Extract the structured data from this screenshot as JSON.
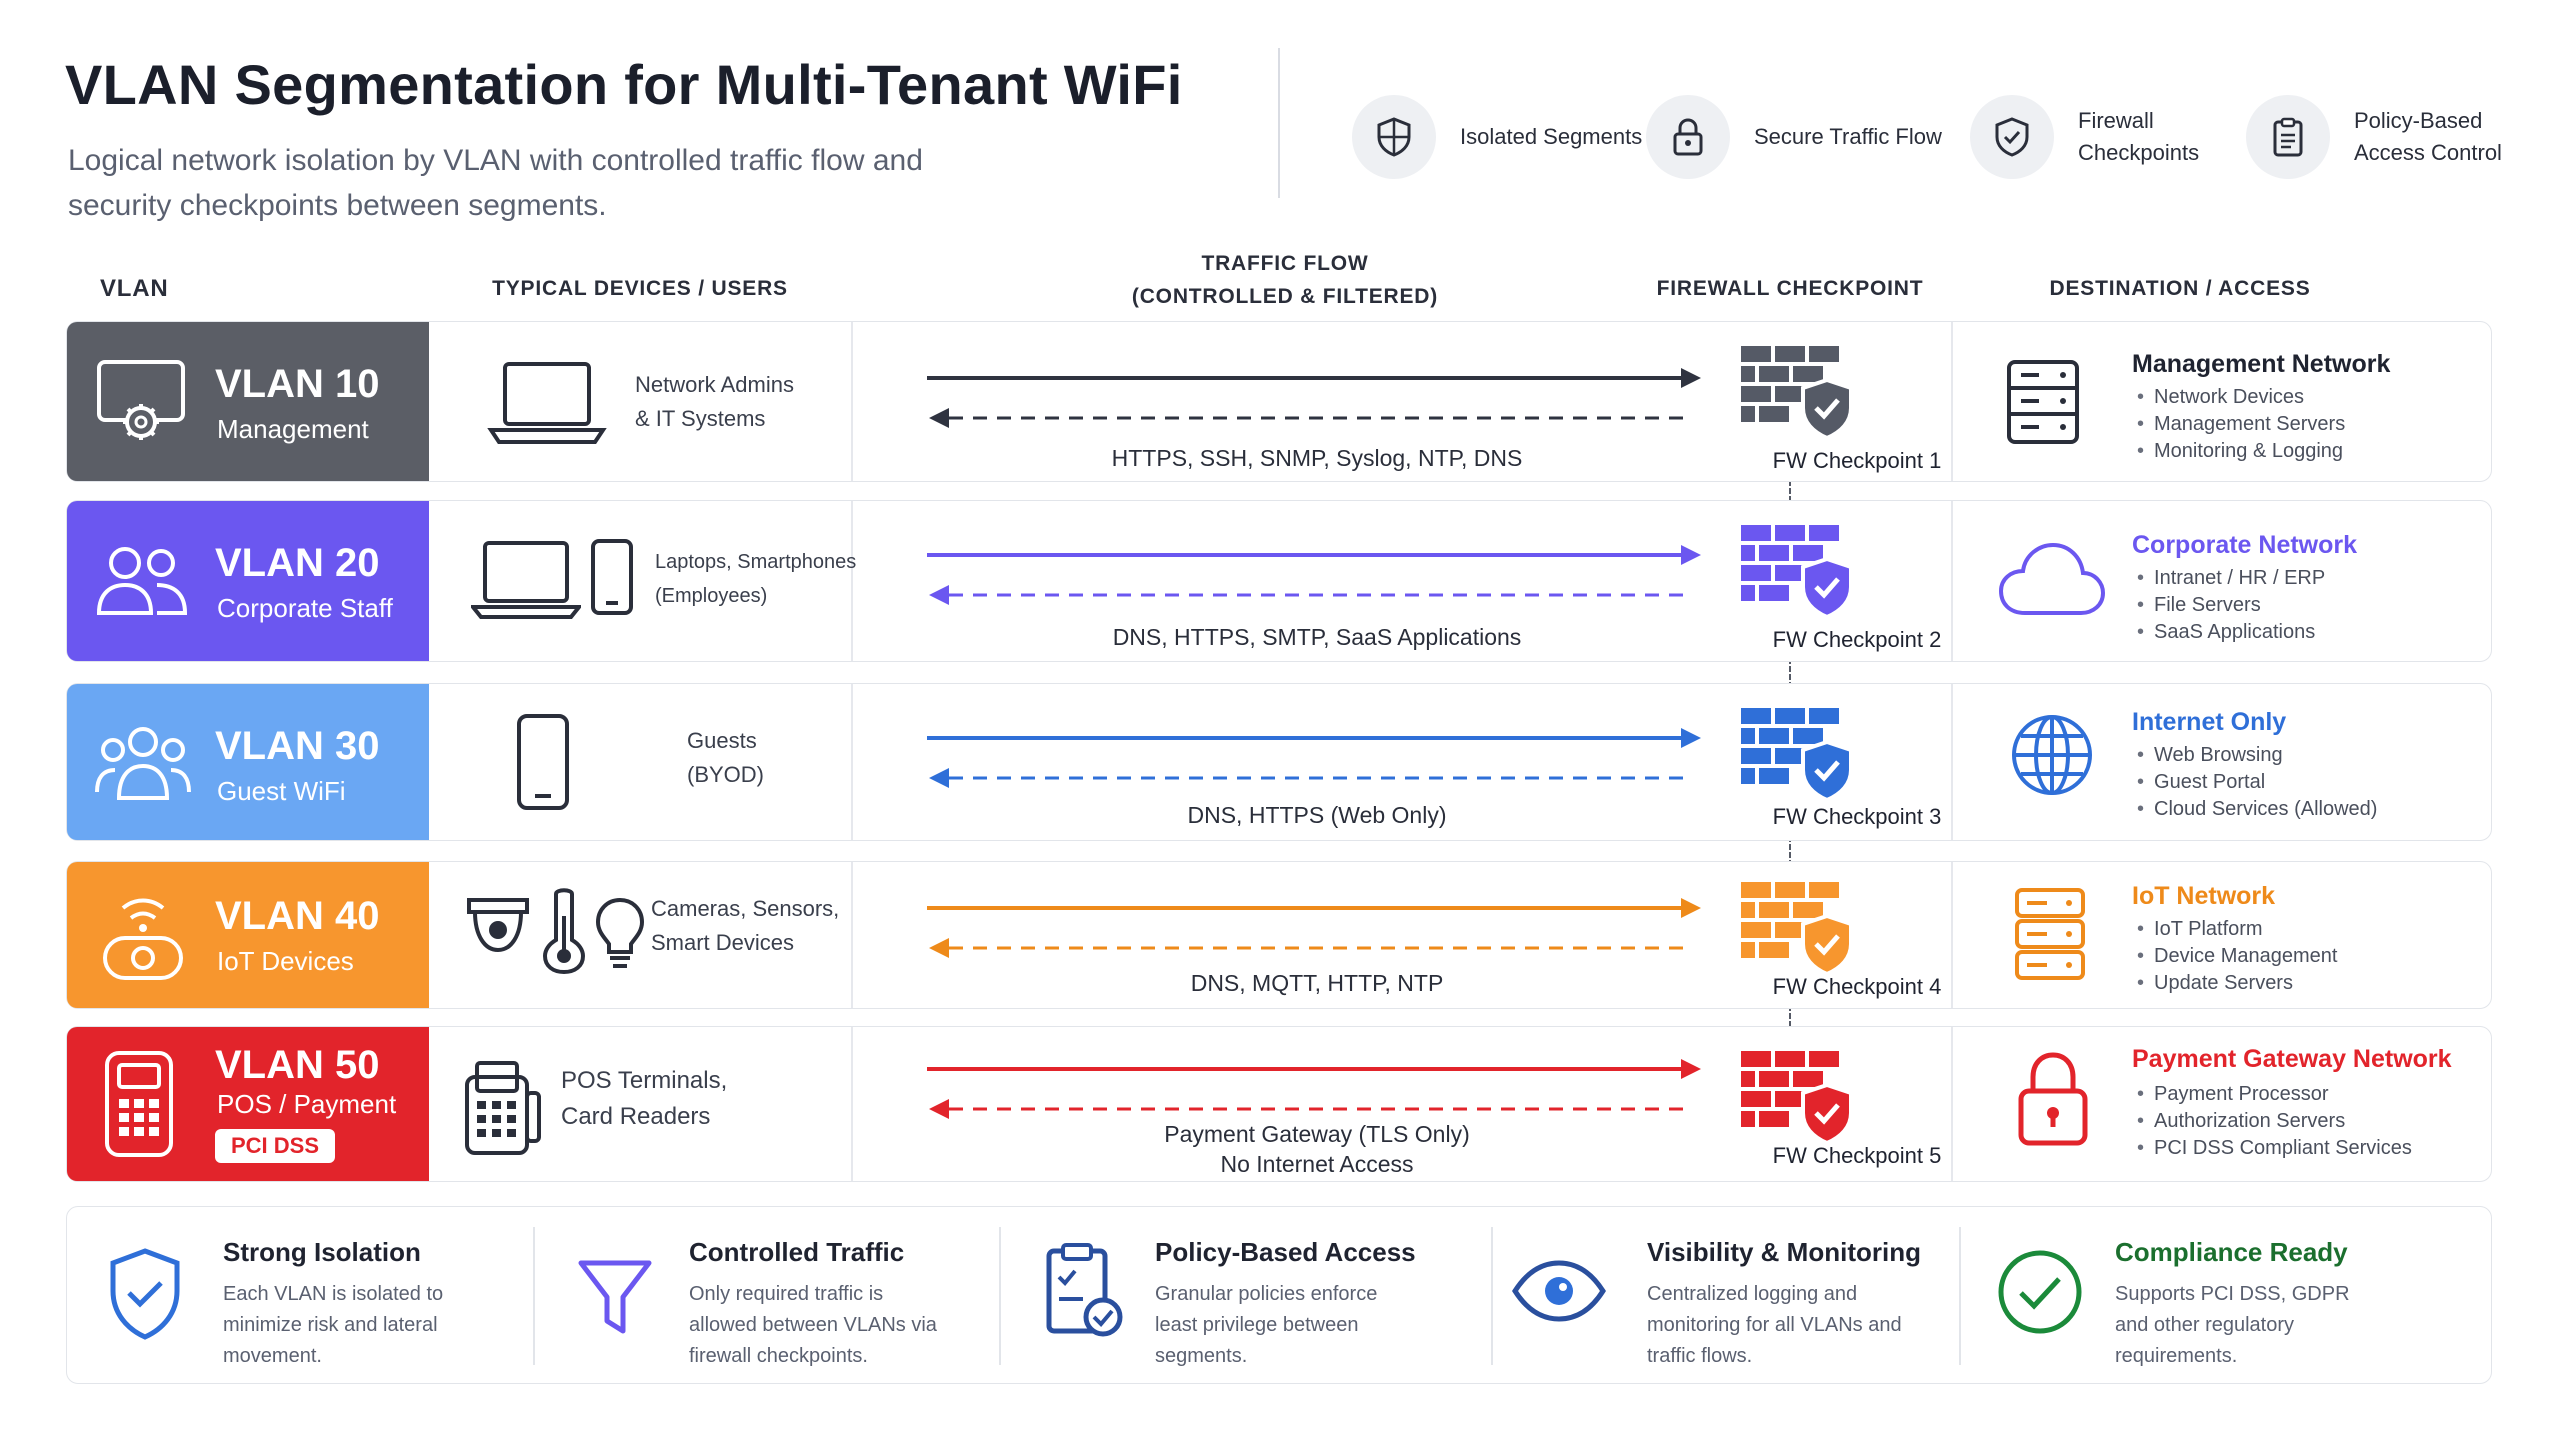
{
  "header": {
    "title": "VLAN Segmentation for Multi-Tenant WiFi",
    "subtitle": "Logical network isolation by VLAN with controlled traffic flow and security checkpoints between segments.",
    "features": [
      {
        "label": "Isolated Segments",
        "icon": "shield-icon"
      },
      {
        "label": "Secure Traffic Flow",
        "icon": "lock-icon"
      },
      {
        "label": "Firewall Checkpoints",
        "icon": "shield-check-icon"
      },
      {
        "label": "Policy-Based Access Control",
        "icon": "clipboard-icon"
      }
    ]
  },
  "columns": {
    "vlan": "VLAN",
    "devices": "TYPICAL DEVICES / USERS",
    "traffic": "TRAFFIC FLOW",
    "traffic_sub": "(CONTROLLED & FILTERED)",
    "firewall": "FIREWALL CHECKPOINT",
    "destination": "DESTINATION / ACCESS"
  },
  "rows": [
    {
      "vlan": "VLAN 10",
      "name": "Management",
      "color": "#5b5e66",
      "devices": [
        "Network Admins",
        "& IT Systems"
      ],
      "traffic": "HTTPS, SSH, SNMP, Syslog, NTP, DNS",
      "firewall": "FW Checkpoint 1",
      "dest_title": "Management Network",
      "dest_color": "#1f2330",
      "dest_items": [
        "Network Devices",
        "Management Servers",
        "Monitoring & Logging"
      ]
    },
    {
      "vlan": "VLAN 20",
      "name": "Corporate Staff",
      "color": "#6b57f0",
      "devices": [
        "Laptops, Smartphones",
        "(Employees)"
      ],
      "traffic": "DNS, HTTPS, SMTP, SaaS Applications",
      "firewall": "FW Checkpoint 2",
      "dest_title": "Corporate Network",
      "dest_color": "#6b57f0",
      "dest_items": [
        "Intranet / HR / ERP",
        "File Servers",
        "SaaS Applications"
      ]
    },
    {
      "vlan": "VLAN 30",
      "name": "Guest WiFi",
      "color": "#6aa7f3",
      "devices": [
        "Guests",
        "(BYOD)"
      ],
      "traffic": "DNS, HTTPS (Web Only)",
      "firewall": "FW Checkpoint 3",
      "dest_title": "Internet Only",
      "dest_color": "#2f6fd8",
      "dest_items": [
        "Web Browsing",
        "Guest Portal",
        "Cloud Services (Allowed)"
      ]
    },
    {
      "vlan": "VLAN 40",
      "name": "IoT Devices",
      "color": "#f7962e",
      "devices": [
        "Cameras, Sensors,",
        "Smart Devices"
      ],
      "traffic": "DNS, MQTT, HTTP, NTP",
      "firewall": "FW Checkpoint 4",
      "dest_title": "IoT Network",
      "dest_color": "#ee8a1a",
      "dest_items": [
        "IoT Platform",
        "Device Management",
        "Update Servers"
      ]
    },
    {
      "vlan": "VLAN 50",
      "name": "POS / Payment",
      "badge": "PCI DSS",
      "color": "#e2242b",
      "devices": [
        "POS Terminals,",
        "Card Readers"
      ],
      "traffic": "Payment Gateway (TLS Only)",
      "traffic2": "No Internet Access",
      "firewall": "FW Checkpoint 5",
      "dest_title": "Payment Gateway Network",
      "dest_color": "#e2242b",
      "dest_items": [
        "Payment Processor",
        "Authorization Servers",
        "PCI DSS Compliant Services"
      ]
    }
  ],
  "bottom": [
    {
      "title": "Strong Isolation",
      "desc": "Each VLAN is isolated to minimize risk and lateral movement.",
      "icon": "shield-check-icon",
      "title_color": "#1f2330"
    },
    {
      "title": "Controlled Traffic",
      "desc": "Only required traffic is allowed between VLANs via firewall checkpoints.",
      "icon": "filter-icon",
      "title_color": "#1f2330"
    },
    {
      "title": "Policy-Based Access",
      "desc": "Granular policies enforce least privilege between segments.",
      "icon": "clipboard-check-icon",
      "title_color": "#1f2330"
    },
    {
      "title": "Visibility & Monitoring",
      "desc": "Centralized logging and monitoring for all VLANs and traffic flows.",
      "icon": "eye-icon",
      "title_color": "#1f2330"
    },
    {
      "title": "Compliance Ready",
      "desc": "Supports PCI DSS, GDPR and other regulatory requirements.",
      "icon": "check-circle-icon",
      "title_color": "#1b6f2e"
    }
  ]
}
